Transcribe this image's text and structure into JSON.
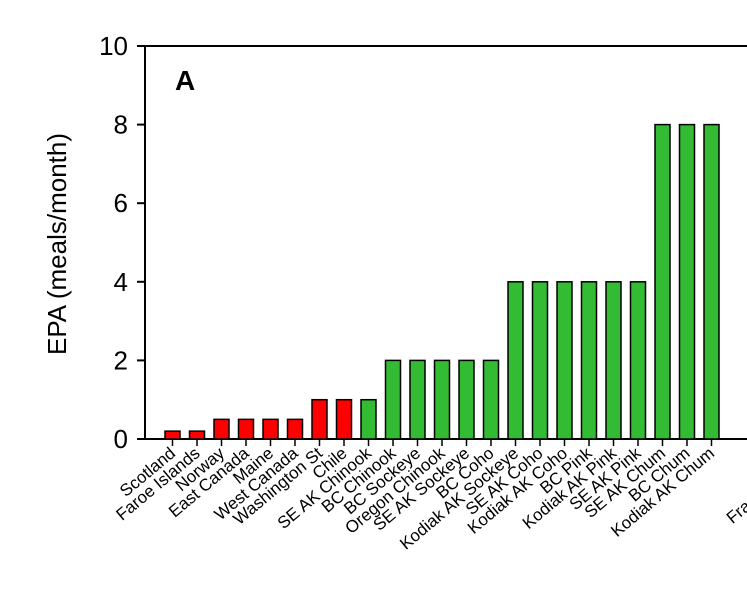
{
  "chart_data": {
    "type": "bar",
    "panel_label": "A",
    "ylabel": "EPA (meals/month)",
    "xlabel": "",
    "ylim": [
      0,
      10
    ],
    "yticks": [
      0,
      2,
      4,
      6,
      8,
      10
    ],
    "grid": false,
    "categories": [
      "Scotland",
      "Faroe Islands",
      "Norway",
      "East Canada",
      "Maine",
      "West Canada",
      "Washington St",
      "Chile",
      "SE AK Chinook",
      "BC Chinook",
      "BC Sockeye",
      "Oregon Chinook",
      "SE AK Sockeye",
      "BC Coho",
      "Kodiak AK Sockeye",
      "SE AK Coho",
      "Kodiak AK Coho",
      "BC Pink",
      "Kodiak AK Pink",
      "SE AK Pink",
      "SE AK Chum",
      "BC Chum",
      "Kodiak AK Chum"
    ],
    "values": [
      0.2,
      0.2,
      0.5,
      0.5,
      0.5,
      0.5,
      1,
      1,
      1,
      2,
      2,
      2,
      2,
      2,
      4,
      4,
      4,
      4,
      4,
      4,
      8,
      8,
      8
    ],
    "colors": [
      "#ff0000",
      "#ff0000",
      "#ff0000",
      "#ff0000",
      "#ff0000",
      "#ff0000",
      "#ff0000",
      "#ff0000",
      "#33bb33",
      "#33bb33",
      "#33bb33",
      "#33bb33",
      "#33bb33",
      "#33bb33",
      "#33bb33",
      "#33bb33",
      "#33bb33",
      "#33bb33",
      "#33bb33",
      "#33bb33",
      "#33bb33",
      "#33bb33",
      "#33bb33"
    ],
    "cropped_label_fragment": "Fra"
  }
}
